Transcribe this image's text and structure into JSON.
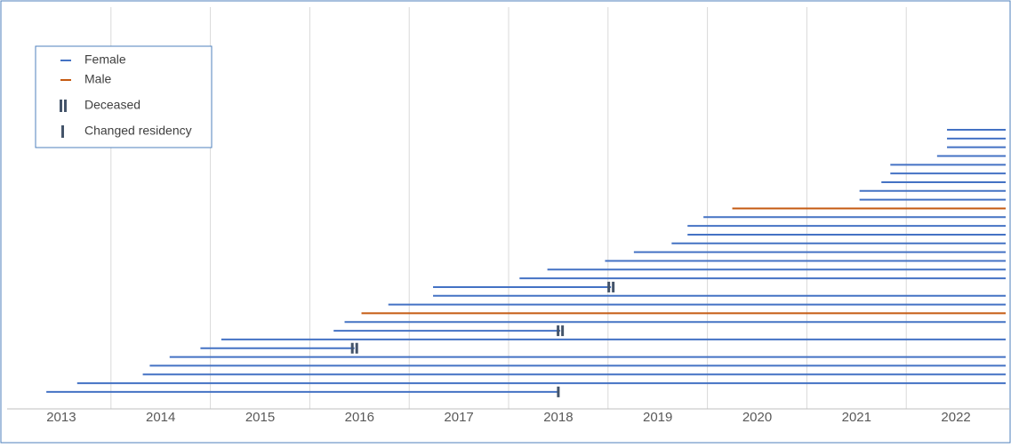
{
  "chart_data": {
    "type": "timeline",
    "xlim": [
      2013,
      2023
    ],
    "xticks": [
      {
        "value": 2013.5,
        "label": "2013"
      },
      {
        "value": 2014.5,
        "label": "2014"
      },
      {
        "value": 2015.5,
        "label": "2015"
      },
      {
        "value": 2016.5,
        "label": "2016"
      },
      {
        "value": 2017.5,
        "label": "2017"
      },
      {
        "value": 2018.5,
        "label": "2018"
      },
      {
        "value": 2019.5,
        "label": "2019"
      },
      {
        "value": 2020.5,
        "label": "2020"
      },
      {
        "value": 2021.5,
        "label": "2021"
      },
      {
        "value": 2022.5,
        "label": "2022"
      }
    ],
    "grid_x": [
      2014,
      2015,
      2016,
      2017,
      2018,
      2019,
      2020,
      2021,
      2022
    ],
    "series": [
      {
        "name": "Female",
        "color": "#4472c4"
      },
      {
        "name": "Male",
        "color": "#c55a11"
      }
    ],
    "markers": [
      {
        "name": "Deceased",
        "symbol": "double",
        "color": "#44546a"
      },
      {
        "name": "Changed residency",
        "symbol": "single",
        "color": "#44546a"
      }
    ],
    "rows": [
      {
        "start": 2022.41,
        "end": 2023,
        "series": 0,
        "marker": null
      },
      {
        "start": 2022.41,
        "end": 2023,
        "series": 0,
        "marker": null
      },
      {
        "start": 2022.41,
        "end": 2023,
        "series": 0,
        "marker": null
      },
      {
        "start": 2022.31,
        "end": 2023,
        "series": 0,
        "marker": null
      },
      {
        "start": 2021.84,
        "end": 2023,
        "series": 0,
        "marker": null
      },
      {
        "start": 2021.84,
        "end": 2023,
        "series": 0,
        "marker": null
      },
      {
        "start": 2021.75,
        "end": 2023,
        "series": 0,
        "marker": null
      },
      {
        "start": 2021.53,
        "end": 2023,
        "series": 0,
        "marker": null
      },
      {
        "start": 2021.53,
        "end": 2023,
        "series": 0,
        "marker": null
      },
      {
        "start": 2020.25,
        "end": 2023,
        "series": 1,
        "marker": null
      },
      {
        "start": 2019.96,
        "end": 2023,
        "series": 0,
        "marker": null
      },
      {
        "start": 2019.8,
        "end": 2023,
        "series": 0,
        "marker": null
      },
      {
        "start": 2019.8,
        "end": 2023,
        "series": 0,
        "marker": null
      },
      {
        "start": 2019.64,
        "end": 2023,
        "series": 0,
        "marker": null
      },
      {
        "start": 2019.26,
        "end": 2023,
        "series": 0,
        "marker": null
      },
      {
        "start": 2018.97,
        "end": 2023,
        "series": 0,
        "marker": null
      },
      {
        "start": 2018.39,
        "end": 2023,
        "series": 0,
        "marker": null
      },
      {
        "start": 2018.11,
        "end": 2023,
        "series": 0,
        "marker": null
      },
      {
        "start": 2017.24,
        "end": 2019.03,
        "series": 0,
        "marker": 0
      },
      {
        "start": 2017.24,
        "end": 2023,
        "series": 0,
        "marker": null
      },
      {
        "start": 2016.79,
        "end": 2023,
        "series": 0,
        "marker": null
      },
      {
        "start": 2016.52,
        "end": 2023,
        "series": 1,
        "marker": null
      },
      {
        "start": 2016.35,
        "end": 2023,
        "series": 0,
        "marker": null
      },
      {
        "start": 2016.24,
        "end": 2018.52,
        "series": 0,
        "marker": 0
      },
      {
        "start": 2015.11,
        "end": 2023,
        "series": 0,
        "marker": null
      },
      {
        "start": 2014.9,
        "end": 2016.45,
        "series": 0,
        "marker": 0
      },
      {
        "start": 2014.59,
        "end": 2023,
        "series": 0,
        "marker": null
      },
      {
        "start": 2014.39,
        "end": 2023,
        "series": 0,
        "marker": null
      },
      {
        "start": 2014.32,
        "end": 2023,
        "series": 0,
        "marker": null
      },
      {
        "start": 2013.66,
        "end": 2023,
        "series": 0,
        "marker": null
      },
      {
        "start": 2013.35,
        "end": 2018.5,
        "series": 0,
        "marker": 1
      }
    ]
  }
}
